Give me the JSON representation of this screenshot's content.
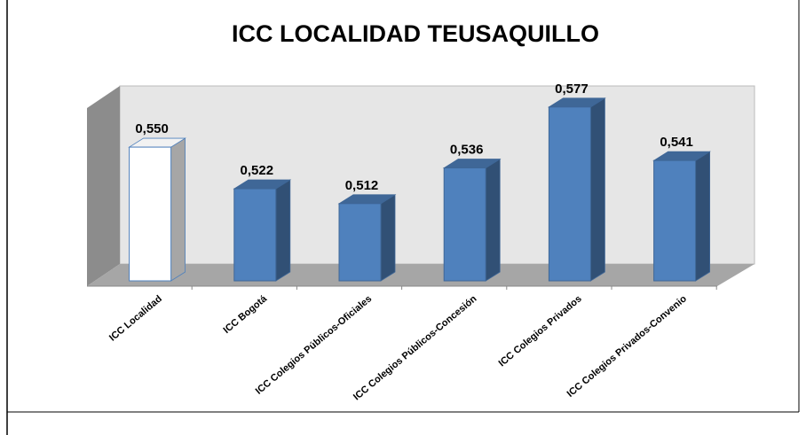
{
  "chart_data": {
    "type": "bar3d",
    "title": "ICC LOCALIDAD TEUSAQUILLO",
    "categories": [
      "ICC Localidad",
      "ICC Bogotá",
      "ICC Colegios Públicos-Oficiales",
      "ICC Colegios Públicos-Concesión",
      "ICC Colegios Privados",
      "ICC Colegios Privados-Convenio"
    ],
    "values": [
      0.55,
      0.522,
      0.512,
      0.536,
      0.577,
      0.541
    ],
    "value_labels": [
      "0,550",
      "0,522",
      "0,512",
      "0,536",
      "0,577",
      "0,541"
    ],
    "colors": [
      "#ffffff",
      "#4f81bd",
      "#4f81bd",
      "#4f81bd",
      "#4f81bd",
      "#4f81bd"
    ],
    "ylim": [
      0.46,
      0.59
    ]
  }
}
